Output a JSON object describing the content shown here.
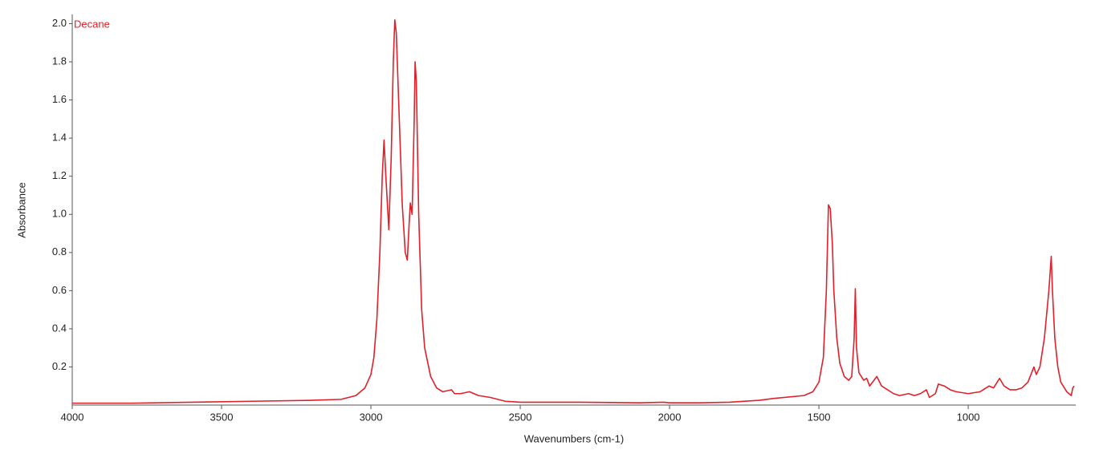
{
  "chart_data": {
    "type": "line",
    "annotation": "Decane",
    "xlabel": "Wavenumbers (cm-1)",
    "ylabel": "Absorbance",
    "xlim": [
      4000,
      640
    ],
    "ylim": [
      0,
      2.04
    ],
    "xticks": [
      4000,
      3500,
      3000,
      2500,
      2000,
      1500,
      1000
    ],
    "yticks": [
      0.2,
      0.4,
      0.6,
      0.8,
      {
        "value": 1.0,
        "label": "1.0"
      },
      1.2,
      1.4,
      1.6,
      1.8,
      {
        "value": 2.0,
        "label": "2.0"
      }
    ],
    "series": [
      {
        "name": "Decane",
        "color": "#e0202a",
        "x": [
          4000,
          3800,
          3600,
          3400,
          3200,
          3100,
          3050,
          3020,
          3000,
          2990,
          2980,
          2970,
          2962,
          2956,
          2950,
          2940,
          2932,
          2925,
          2920,
          2915,
          2905,
          2895,
          2885,
          2878,
          2872,
          2868,
          2862,
          2855,
          2852,
          2848,
          2840,
          2830,
          2820,
          2800,
          2780,
          2760,
          2730,
          2720,
          2700,
          2670,
          2640,
          2600,
          2550,
          2500,
          2300,
          2100,
          2020,
          2000,
          1900,
          1800,
          1700,
          1650,
          1550,
          1520,
          1500,
          1485,
          1475,
          1468,
          1462,
          1455,
          1450,
          1440,
          1430,
          1415,
          1400,
          1390,
          1382,
          1378,
          1374,
          1366,
          1350,
          1340,
          1330,
          1306,
          1290,
          1270,
          1250,
          1230,
          1200,
          1180,
          1160,
          1140,
          1130,
          1110,
          1100,
          1080,
          1060,
          1040,
          1000,
          960,
          930,
          915,
          895,
          880,
          860,
          840,
          820,
          800,
          780,
          772,
          760,
          745,
          730,
          722,
          718,
          710,
          700,
          690,
          670,
          655,
          650,
          645
        ],
        "values": [
          0.01,
          0.01,
          0.015,
          0.02,
          0.025,
          0.03,
          0.05,
          0.09,
          0.16,
          0.25,
          0.45,
          0.8,
          1.2,
          1.39,
          1.2,
          0.92,
          1.3,
          1.8,
          2.02,
          1.95,
          1.5,
          1.05,
          0.8,
          0.76,
          0.95,
          1.06,
          1.0,
          1.5,
          1.8,
          1.7,
          1.0,
          0.5,
          0.3,
          0.15,
          0.09,
          0.07,
          0.08,
          0.06,
          0.06,
          0.07,
          0.05,
          0.04,
          0.02,
          0.015,
          0.015,
          0.012,
          0.015,
          0.012,
          0.012,
          0.015,
          0.025,
          0.035,
          0.05,
          0.07,
          0.12,
          0.25,
          0.6,
          1.05,
          1.03,
          0.85,
          0.6,
          0.35,
          0.22,
          0.15,
          0.13,
          0.15,
          0.35,
          0.61,
          0.3,
          0.17,
          0.13,
          0.14,
          0.1,
          0.15,
          0.1,
          0.08,
          0.06,
          0.05,
          0.06,
          0.05,
          0.06,
          0.08,
          0.04,
          0.06,
          0.11,
          0.1,
          0.08,
          0.07,
          0.06,
          0.07,
          0.1,
          0.09,
          0.14,
          0.1,
          0.08,
          0.08,
          0.09,
          0.12,
          0.2,
          0.16,
          0.2,
          0.35,
          0.6,
          0.78,
          0.6,
          0.35,
          0.2,
          0.12,
          0.07,
          0.05,
          0.09,
          0.1
        ]
      }
    ]
  }
}
